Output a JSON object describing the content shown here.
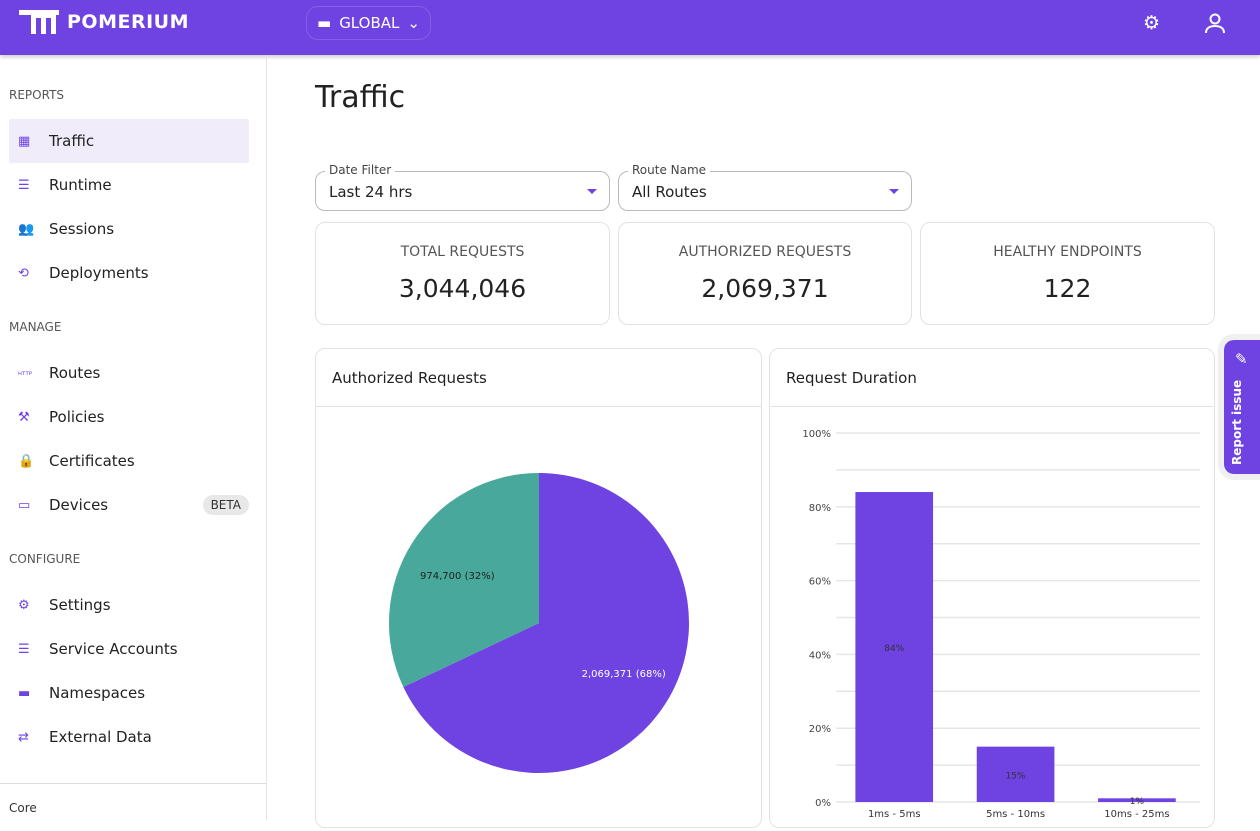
{
  "header": {
    "brand": "POMERIUM",
    "namespace": "GLOBAL",
    "icons": [
      "settings-icon",
      "user-icon"
    ]
  },
  "sidebar": {
    "sections": [
      {
        "title": "REPORTS",
        "items": [
          {
            "label": "Traffic",
            "icon": "chart-icon",
            "active": true
          },
          {
            "label": "Runtime",
            "icon": "server-icon"
          },
          {
            "label": "Sessions",
            "icon": "people-icon"
          },
          {
            "label": "Deployments",
            "icon": "history-icon"
          }
        ]
      },
      {
        "title": "MANAGE",
        "items": [
          {
            "label": "Routes",
            "icon": "http-icon"
          },
          {
            "label": "Policies",
            "icon": "gavel-icon"
          },
          {
            "label": "Certificates",
            "icon": "lock-icon"
          },
          {
            "label": "Devices",
            "icon": "devices-icon",
            "badge": "BETA"
          }
        ]
      },
      {
        "title": "CONFIGURE",
        "items": [
          {
            "label": "Settings",
            "icon": "gear-icon"
          },
          {
            "label": "Service Accounts",
            "icon": "server-icon"
          },
          {
            "label": "Namespaces",
            "icon": "folder-icon"
          },
          {
            "label": "External Data",
            "icon": "data-icon"
          }
        ]
      }
    ],
    "footer": "Core"
  },
  "page": {
    "title": "Traffic",
    "filters": [
      {
        "label": "Date Filter",
        "value": "Last 24 hrs"
      },
      {
        "label": "Route Name",
        "value": "All Routes"
      }
    ],
    "stats": [
      {
        "title": "TOTAL REQUESTS",
        "value": "3,044,046"
      },
      {
        "title": "AUTHORIZED REQUESTS",
        "value": "2,069,371"
      },
      {
        "title": "HEALTHY ENDPOINTS",
        "value": "122"
      }
    ],
    "report_issue": "Report issue"
  },
  "chart_data": [
    {
      "type": "pie",
      "title": "Authorized Requests",
      "slices": [
        {
          "value": 2069371,
          "label": "2,069,371 (68%)",
          "color": "#6e43e2"
        },
        {
          "value": 974700,
          "label": "974,700 (32%)",
          "color": "#48a89c"
        }
      ]
    },
    {
      "type": "bar",
      "title": "Request Duration",
      "categories": [
        "1ms - 5ms",
        "5ms - 10ms",
        "10ms - 25ms"
      ],
      "values": [
        84,
        15,
        1
      ],
      "data_labels": [
        "84%",
        "15%",
        "1%"
      ],
      "ylim": [
        0,
        100
      ],
      "yticks": [
        "0%",
        "20%",
        "40%",
        "60%",
        "80%",
        "100%"
      ],
      "grid": true,
      "color": "#6e43e2"
    }
  ]
}
